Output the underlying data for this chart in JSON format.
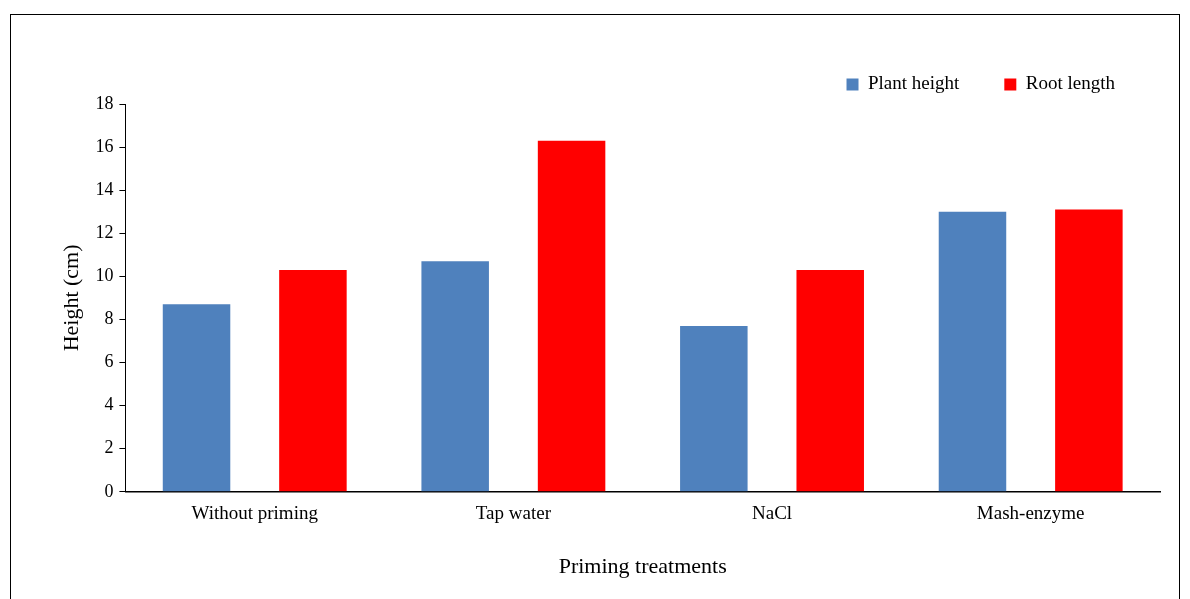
{
  "chart_data": {
    "type": "bar",
    "xlabel": "Priming treatments",
    "ylabel": "Height (cm)",
    "categories": [
      "Without priming",
      "Tap water",
      "NaCl",
      "Mash-enzyme"
    ],
    "series": [
      {
        "name": "Plant height",
        "color": "#4f81bd",
        "values": [
          8.7,
          10.7,
          7.7,
          13.0
        ]
      },
      {
        "name": "Root length",
        "color": "#ff0000",
        "values": [
          10.3,
          16.3,
          10.3,
          13.1
        ]
      }
    ],
    "ylim": [
      0,
      18
    ],
    "yticks": [
      0,
      2,
      4,
      6,
      8,
      10,
      12,
      14,
      16,
      18
    ],
    "grid": false,
    "legend": "top right"
  }
}
